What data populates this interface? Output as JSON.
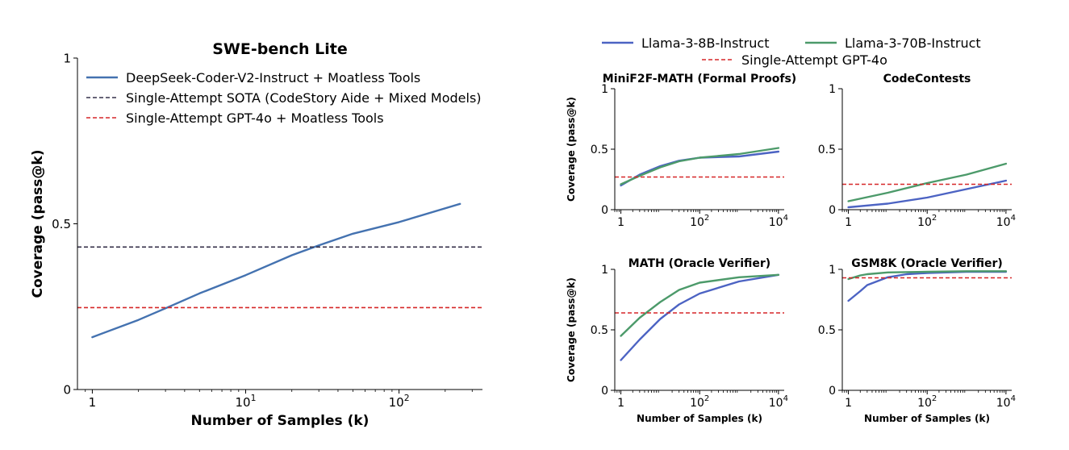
{
  "colors": {
    "deepseek": "#4472b0",
    "sota": "#35304a",
    "gpt4o": "#d62728",
    "llama8b": "#4c63c3",
    "llama70b": "#4c9a6a"
  },
  "chart_data": [
    {
      "id": "swe",
      "type": "line",
      "title": "SWE-bench Lite",
      "xlabel": "Number of Samples (k)",
      "ylabel": "Coverage (pass@k)",
      "xscale": "log",
      "xlim": [
        0.8,
        350
      ],
      "ylim": [
        0,
        1
      ],
      "xticks": [
        {
          "value": 1,
          "label": "1"
        },
        {
          "value": 10,
          "label": "10",
          "sup": "1"
        },
        {
          "value": 100,
          "label": "10",
          "sup": "2"
        }
      ],
      "yticks": [
        {
          "value": 0,
          "label": "0"
        },
        {
          "value": 0.5,
          "label": "0.5"
        },
        {
          "value": 1,
          "label": "1"
        }
      ],
      "legend_position": "top-left",
      "series": [
        {
          "name": "DeepSeek-Coder-V2-Instruct + Moatless Tools",
          "style": "solid",
          "color_key": "deepseek",
          "x": [
            1,
            2,
            3,
            5,
            10,
            20,
            30,
            50,
            100,
            250
          ],
          "y": [
            0.158,
            0.21,
            0.245,
            0.29,
            0.345,
            0.405,
            0.435,
            0.47,
            0.505,
            0.56
          ]
        },
        {
          "name": "Single-Attempt SOTA (CodeStory Aide + Mixed Models)",
          "style": "dashed",
          "color_key": "sota",
          "hline": 0.43
        },
        {
          "name": "Single-Attempt GPT-4o + Moatless Tools",
          "style": "dashed",
          "color_key": "gpt4o",
          "hline": 0.247
        }
      ]
    },
    {
      "id": "minif2f",
      "type": "line",
      "title": "MiniF2F-MATH (Formal Proofs)",
      "xlabel": "",
      "ylabel": "Coverage (pass@k)",
      "xscale": "log",
      "xlim": [
        0.7,
        14000
      ],
      "ylim": [
        0,
        1
      ],
      "xticks": [
        {
          "value": 1,
          "label": "1"
        },
        {
          "value": 100,
          "label": "10",
          "sup": "2"
        },
        {
          "value": 10000,
          "label": "10",
          "sup": "4"
        }
      ],
      "yticks": [
        {
          "value": 0,
          "label": "0"
        },
        {
          "value": 0.5,
          "label": "0.5"
        },
        {
          "value": 1,
          "label": "1"
        }
      ],
      "series": [
        {
          "name": "Llama-3-8B-Instruct",
          "color_key": "llama8b",
          "style": "solid",
          "x": [
            1,
            3,
            10,
            30,
            100,
            1000,
            10000
          ],
          "y": [
            0.2,
            0.29,
            0.36,
            0.405,
            0.43,
            0.44,
            0.48
          ]
        },
        {
          "name": "Llama-3-70B-Instruct",
          "color_key": "llama70b",
          "style": "solid",
          "x": [
            1,
            3,
            10,
            30,
            100,
            1000,
            10000
          ],
          "y": [
            0.21,
            0.28,
            0.35,
            0.4,
            0.43,
            0.46,
            0.51
          ]
        },
        {
          "name": "Single-Attempt GPT-4o",
          "color_key": "gpt4o",
          "style": "dashed",
          "hline": 0.27
        }
      ]
    },
    {
      "id": "codecontests",
      "type": "line",
      "title": "CodeContests",
      "xlabel": "",
      "ylabel": "",
      "xscale": "log",
      "xlim": [
        0.7,
        14000
      ],
      "ylim": [
        0,
        1
      ],
      "xticks": [
        {
          "value": 1,
          "label": "1"
        },
        {
          "value": 100,
          "label": "10",
          "sup": "2"
        },
        {
          "value": 10000,
          "label": "10",
          "sup": "4"
        }
      ],
      "yticks": [
        {
          "value": 0,
          "label": "0"
        },
        {
          "value": 0.5,
          "label": "0.5"
        },
        {
          "value": 1,
          "label": "1"
        }
      ],
      "series": [
        {
          "name": "Llama-3-8B-Instruct",
          "color_key": "llama8b",
          "style": "solid",
          "x": [
            1,
            10,
            100,
            1000,
            10000
          ],
          "y": [
            0.02,
            0.05,
            0.1,
            0.17,
            0.24
          ]
        },
        {
          "name": "Llama-3-70B-Instruct",
          "color_key": "llama70b",
          "style": "solid",
          "x": [
            1,
            10,
            100,
            1000,
            10000
          ],
          "y": [
            0.07,
            0.14,
            0.22,
            0.29,
            0.38
          ]
        },
        {
          "name": "Single-Attempt GPT-4o",
          "color_key": "gpt4o",
          "style": "dashed",
          "hline": 0.21
        }
      ]
    },
    {
      "id": "math",
      "type": "line",
      "title": "MATH (Oracle Verifier)",
      "xlabel": "Number of Samples (k)",
      "ylabel": "Coverage (pass@k)",
      "xscale": "log",
      "xlim": [
        0.7,
        14000
      ],
      "ylim": [
        0,
        1
      ],
      "xticks": [
        {
          "value": 1,
          "label": "1"
        },
        {
          "value": 100,
          "label": "10",
          "sup": "2"
        },
        {
          "value": 10000,
          "label": "10",
          "sup": "4"
        }
      ],
      "yticks": [
        {
          "value": 0,
          "label": "0"
        },
        {
          "value": 0.5,
          "label": "0.5"
        },
        {
          "value": 1,
          "label": "1"
        }
      ],
      "series": [
        {
          "name": "Llama-3-8B-Instruct",
          "color_key": "llama8b",
          "style": "solid",
          "x": [
            1,
            3,
            10,
            30,
            100,
            1000,
            10000
          ],
          "y": [
            0.25,
            0.42,
            0.59,
            0.71,
            0.8,
            0.9,
            0.955
          ]
        },
        {
          "name": "Llama-3-70B-Instruct",
          "color_key": "llama70b",
          "style": "solid",
          "x": [
            1,
            3,
            10,
            30,
            100,
            1000,
            10000
          ],
          "y": [
            0.45,
            0.6,
            0.73,
            0.83,
            0.89,
            0.935,
            0.955
          ]
        },
        {
          "name": "Single-Attempt GPT-4o",
          "color_key": "gpt4o",
          "style": "dashed",
          "hline": 0.64
        }
      ]
    },
    {
      "id": "gsm8k",
      "type": "line",
      "title": "GSM8K (Oracle Verifier)",
      "xlabel": "Number of Samples (k)",
      "ylabel": "",
      "xscale": "log",
      "xlim": [
        0.7,
        14000
      ],
      "ylim": [
        0,
        1
      ],
      "xticks": [
        {
          "value": 1,
          "label": "1"
        },
        {
          "value": 100,
          "label": "10",
          "sup": "2"
        },
        {
          "value": 10000,
          "label": "10",
          "sup": "4"
        }
      ],
      "yticks": [
        {
          "value": 0,
          "label": "0"
        },
        {
          "value": 0.5,
          "label": "0.5"
        },
        {
          "value": 1,
          "label": "1"
        }
      ],
      "series": [
        {
          "name": "Llama-3-8B-Instruct",
          "color_key": "llama8b",
          "style": "solid",
          "x": [
            1,
            2,
            3,
            10,
            30,
            100,
            1000,
            10000
          ],
          "y": [
            0.74,
            0.82,
            0.87,
            0.935,
            0.96,
            0.97,
            0.98,
            0.98
          ]
        },
        {
          "name": "Llama-3-70B-Instruct",
          "color_key": "llama70b",
          "style": "solid",
          "x": [
            1,
            2,
            3,
            10,
            100,
            1000,
            10000
          ],
          "y": [
            0.92,
            0.95,
            0.96,
            0.975,
            0.98,
            0.985,
            0.985
          ]
        },
        {
          "name": "Single-Attempt GPT-4o",
          "color_key": "gpt4o",
          "style": "dashed",
          "hline": 0.93
        }
      ]
    }
  ],
  "shared_legend": {
    "position": "top",
    "items": [
      {
        "label": "Llama-3-8B-Instruct",
        "color_key": "llama8b",
        "style": "solid"
      },
      {
        "label": "Llama-3-70B-Instruct",
        "color_key": "llama70b",
        "style": "solid"
      },
      {
        "label": "Single-Attempt GPT-4o",
        "color_key": "gpt4o",
        "style": "dashed"
      }
    ]
  }
}
